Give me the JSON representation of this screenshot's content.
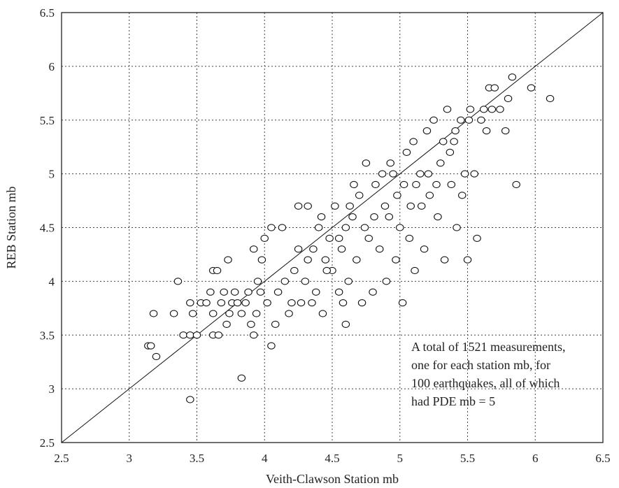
{
  "chart_data": {
    "type": "scatter",
    "title": "",
    "xlabel": "Veith-Clawson Station mb",
    "ylabel": "REB Station mb",
    "xlim": [
      2.5,
      6.5
    ],
    "ylim": [
      2.5,
      6.5
    ],
    "xticks": [
      2.5,
      3,
      3.5,
      4,
      4.5,
      5,
      5.5,
      6,
      6.5
    ],
    "yticks": [
      2.5,
      3,
      3.5,
      4,
      4.5,
      5,
      5.5,
      6,
      6.5
    ],
    "xtick_labels": [
      "2.5",
      "3",
      "3.5",
      "4",
      "4.5",
      "5",
      "5.5",
      "6",
      "6.5"
    ],
    "ytick_labels": [
      "2.5",
      "3",
      "3.5",
      "4",
      "4.5",
      "5",
      "5.5",
      "6",
      "6.5"
    ],
    "grid": true,
    "reference_line": {
      "from": [
        2.5,
        2.5
      ],
      "to": [
        6.5,
        6.5
      ]
    },
    "annotation": [
      "A total of 1521 measurements,",
      "one for each station mb, for",
      "100 earthquakes, all of which",
      "had PDE mb = 5"
    ],
    "series": [
      {
        "marker": "open-circle",
        "points": [
          [
            3.14,
            3.4
          ],
          [
            3.16,
            3.4
          ],
          [
            3.2,
            3.3
          ],
          [
            3.18,
            3.7
          ],
          [
            3.33,
            3.7
          ],
          [
            3.36,
            4.0
          ],
          [
            3.45,
            2.9
          ],
          [
            3.45,
            3.8
          ],
          [
            3.4,
            3.5
          ],
          [
            3.45,
            3.5
          ],
          [
            3.47,
            3.7
          ],
          [
            3.5,
            3.5
          ],
          [
            3.53,
            3.8
          ],
          [
            3.57,
            3.8
          ],
          [
            3.6,
            3.9
          ],
          [
            3.62,
            3.7
          ],
          [
            3.62,
            3.5
          ],
          [
            3.66,
            3.5
          ],
          [
            3.62,
            4.1
          ],
          [
            3.65,
            4.1
          ],
          [
            3.68,
            3.8
          ],
          [
            3.7,
            3.9
          ],
          [
            3.72,
            3.6
          ],
          [
            3.74,
            3.7
          ],
          [
            3.76,
            3.8
          ],
          [
            3.78,
            3.9
          ],
          [
            3.8,
            3.8
          ],
          [
            3.83,
            3.7
          ],
          [
            3.86,
            3.8
          ],
          [
            3.88,
            3.9
          ],
          [
            3.83,
            3.1
          ],
          [
            3.73,
            4.2
          ],
          [
            3.9,
            3.6
          ],
          [
            3.92,
            3.5
          ],
          [
            3.94,
            3.7
          ],
          [
            3.92,
            4.3
          ],
          [
            3.95,
            4.0
          ],
          [
            3.97,
            3.9
          ],
          [
            3.98,
            4.2
          ],
          [
            4.0,
            4.4
          ],
          [
            4.02,
            3.8
          ],
          [
            4.05,
            4.5
          ],
          [
            4.05,
            3.4
          ],
          [
            4.08,
            3.6
          ],
          [
            4.1,
            3.9
          ],
          [
            4.13,
            4.5
          ],
          [
            4.15,
            4.0
          ],
          [
            4.18,
            3.7
          ],
          [
            4.2,
            3.8
          ],
          [
            4.22,
            4.1
          ],
          [
            4.25,
            4.3
          ],
          [
            4.27,
            3.8
          ],
          [
            4.3,
            4.0
          ],
          [
            4.32,
            4.7
          ],
          [
            4.35,
            3.8
          ],
          [
            4.38,
            3.9
          ],
          [
            4.4,
            4.5
          ],
          [
            4.42,
            4.6
          ],
          [
            4.43,
            3.7
          ],
          [
            4.45,
            4.2
          ],
          [
            4.48,
            4.4
          ],
          [
            4.5,
            4.1
          ],
          [
            4.52,
            4.7
          ],
          [
            4.55,
            3.9
          ],
          [
            4.57,
            4.3
          ],
          [
            4.58,
            3.8
          ],
          [
            4.6,
            4.5
          ],
          [
            4.6,
            3.6
          ],
          [
            4.62,
            4.0
          ],
          [
            4.65,
            4.6
          ],
          [
            4.68,
            4.2
          ],
          [
            4.7,
            4.8
          ],
          [
            4.72,
            3.8
          ],
          [
            4.75,
            5.1
          ],
          [
            4.77,
            4.4
          ],
          [
            4.8,
            3.9
          ],
          [
            4.82,
            4.9
          ],
          [
            4.85,
            4.3
          ],
          [
            4.87,
            5.0
          ],
          [
            4.9,
            4.0
          ],
          [
            4.92,
            4.6
          ],
          [
            4.95,
            5.0
          ],
          [
            4.98,
            4.8
          ],
          [
            5.0,
            4.5
          ],
          [
            5.02,
            3.8
          ],
          [
            5.05,
            5.2
          ],
          [
            5.08,
            4.7
          ],
          [
            5.1,
            5.3
          ],
          [
            5.12,
            4.9
          ],
          [
            5.15,
            5.0
          ],
          [
            5.18,
            4.3
          ],
          [
            5.2,
            5.4
          ],
          [
            5.22,
            4.8
          ],
          [
            5.25,
            5.5
          ],
          [
            5.28,
            4.6
          ],
          [
            5.3,
            5.1
          ],
          [
            5.33,
            4.2
          ],
          [
            5.35,
            5.6
          ],
          [
            5.38,
            4.9
          ],
          [
            5.4,
            5.3
          ],
          [
            5.42,
            4.5
          ],
          [
            5.45,
            5.5
          ],
          [
            5.48,
            5.0
          ],
          [
            5.5,
            4.2
          ],
          [
            5.52,
            5.6
          ],
          [
            5.55,
            5.0
          ],
          [
            5.57,
            4.4
          ],
          [
            5.6,
            5.5
          ],
          [
            5.62,
            5.6
          ],
          [
            5.64,
            5.4
          ],
          [
            5.66,
            5.8
          ],
          [
            5.68,
            5.6
          ],
          [
            5.7,
            5.8
          ],
          [
            5.74,
            5.6
          ],
          [
            5.78,
            5.4
          ],
          [
            5.8,
            5.7
          ],
          [
            5.83,
            5.9
          ],
          [
            5.86,
            4.9
          ],
          [
            5.97,
            5.8
          ],
          [
            6.11,
            5.7
          ],
          [
            4.25,
            4.7
          ],
          [
            4.32,
            4.2
          ],
          [
            4.36,
            4.3
          ],
          [
            4.46,
            4.1
          ],
          [
            4.55,
            4.4
          ],
          [
            4.63,
            4.7
          ],
          [
            4.66,
            4.9
          ],
          [
            4.74,
            4.5
          ],
          [
            4.81,
            4.6
          ],
          [
            4.89,
            4.7
          ],
          [
            4.93,
            5.1
          ],
          [
            4.97,
            4.2
          ],
          [
            5.03,
            4.9
          ],
          [
            5.07,
            4.4
          ],
          [
            5.11,
            4.1
          ],
          [
            5.16,
            4.7
          ],
          [
            5.21,
            5.0
          ],
          [
            5.27,
            4.9
          ],
          [
            5.32,
            5.3
          ],
          [
            5.37,
            5.2
          ],
          [
            5.41,
            5.4
          ],
          [
            5.46,
            4.8
          ],
          [
            5.51,
            5.5
          ]
        ]
      }
    ]
  }
}
